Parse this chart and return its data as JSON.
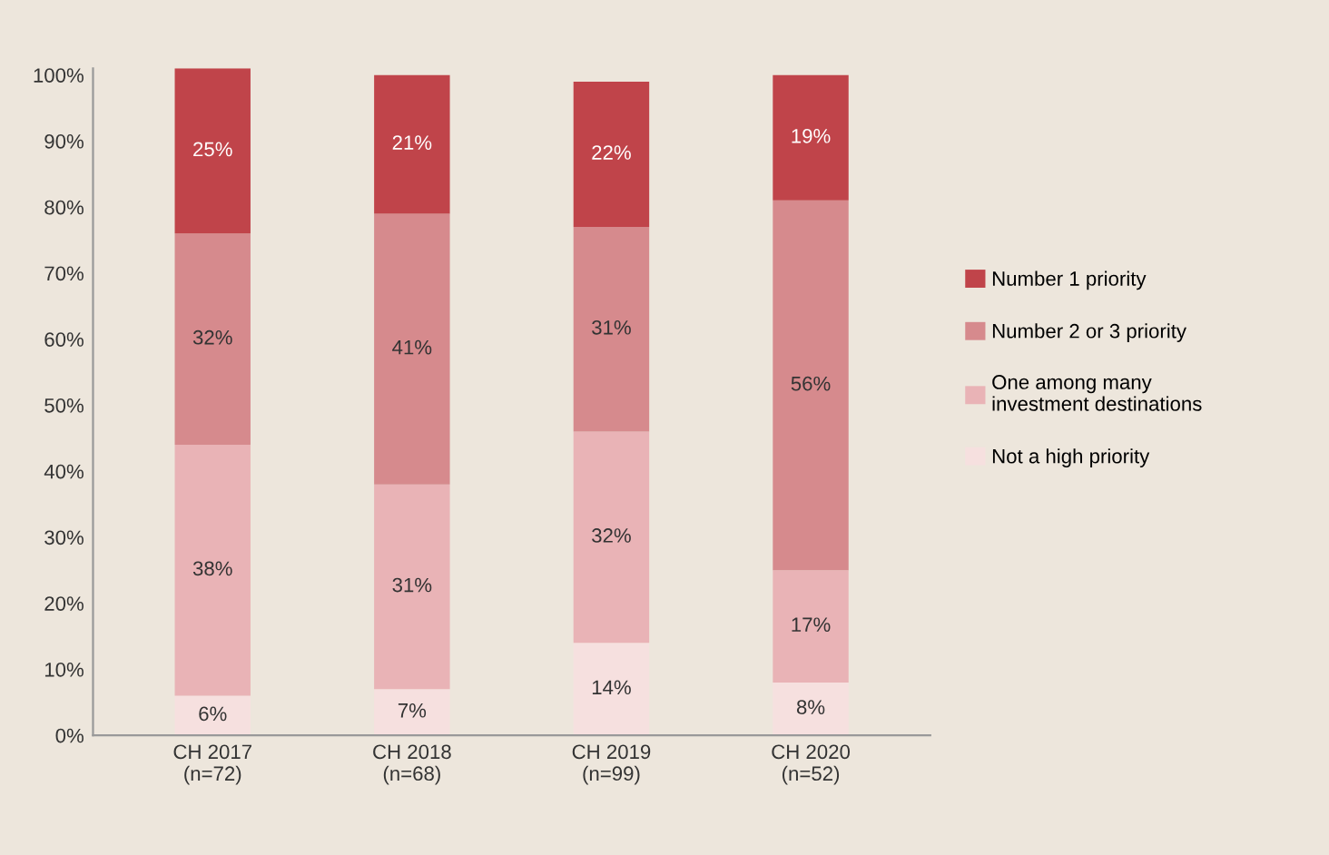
{
  "chart_data": {
    "type": "bar",
    "stacked": true,
    "categories": [
      "CH 2017\n(n=72)",
      "CH 2018\n(n=68)",
      "CH 2019\n(n=99)",
      "CH 2020\n(n=52)"
    ],
    "series": [
      {
        "name": "Not a high priority",
        "color": "#f6e0df",
        "values": [
          6,
          7,
          14,
          8
        ],
        "value_labels": [
          "6%",
          "7%",
          "14%",
          "8%"
        ]
      },
      {
        "name": "One among many\ninvestment destinations",
        "color": "#e9b3b6",
        "values": [
          38,
          31,
          32,
          17
        ],
        "value_labels": [
          "38%",
          "31%",
          "32%",
          "17%"
        ]
      },
      {
        "name": "Number 2 or 3 priority",
        "color": "#d68a8d",
        "values": [
          32,
          41,
          31,
          56
        ],
        "value_labels": [
          "32%",
          "41%",
          "31%",
          "56%"
        ]
      },
      {
        "name": "Number 1 priority",
        "color": "#c0444a",
        "values": [
          25,
          21,
          22,
          19
        ],
        "value_labels": [
          "25%",
          "21%",
          "22%",
          "19%"
        ]
      }
    ],
    "ylim": [
      0,
      101
    ],
    "yticks": [
      {
        "value": 0,
        "label": "0%"
      },
      {
        "value": 10,
        "label": "10%"
      },
      {
        "value": 20,
        "label": "20%"
      },
      {
        "value": 30,
        "label": "30%"
      },
      {
        "value": 40,
        "label": "40%"
      },
      {
        "value": 50,
        "label": "50%"
      },
      {
        "value": 60,
        "label": "60%"
      },
      {
        "value": 70,
        "label": "70%"
      },
      {
        "value": 80,
        "label": "80%"
      },
      {
        "value": 90,
        "label": "90%"
      },
      {
        "value": 100,
        "label": "100%"
      }
    ],
    "grid": false,
    "legend": "right"
  }
}
